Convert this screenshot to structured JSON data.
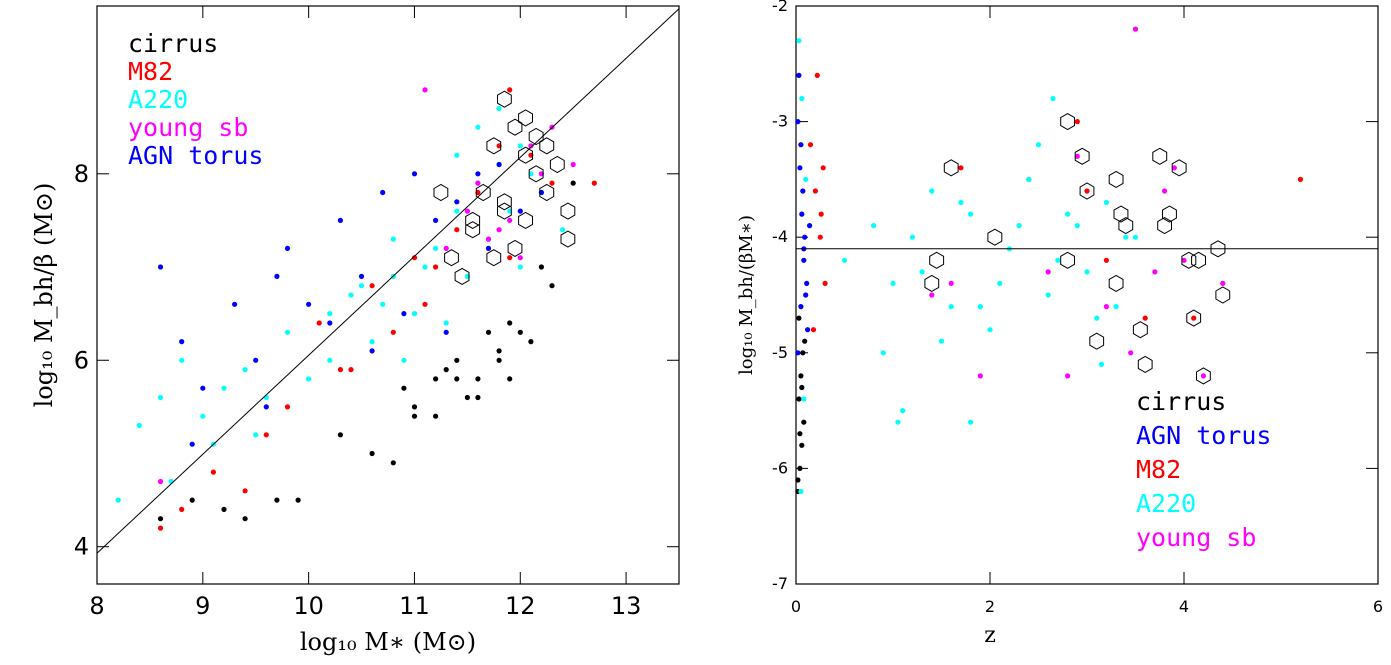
{
  "chart_data": [
    {
      "type": "scatter",
      "title": "",
      "xlabel": "log₁₀ M∗ (M⊙)",
      "ylabel": "log₁₀ M_bh/β (M⊙)",
      "xlim": [
        8,
        13.5
      ],
      "ylim": [
        3.6,
        9.8
      ],
      "xticks": [
        "8",
        "9",
        "10",
        "11",
        "12",
        "13"
      ],
      "yticks": [
        "4",
        "6",
        "8"
      ],
      "legend_position": "top-left",
      "grid": false,
      "fit_line": {
        "x": [
          8,
          13.5
        ],
        "y": [
          3.93,
          9.77
        ]
      },
      "series": [
        {
          "name": "cirrus",
          "color": "#000000",
          "x": [
            8.6,
            8.9,
            9.2,
            9.4,
            9.7,
            9.9,
            10.3,
            10.6,
            10.8,
            11.0,
            11.2,
            11.4,
            11.6,
            11.8,
            11.9,
            12.1,
            12.3,
            12.5,
            11.5,
            11.7,
            11.3,
            11.0,
            10.9,
            11.6,
            11.8,
            12.0,
            11.4,
            11.2,
            11.9,
            12.2
          ],
          "y": [
            4.3,
            4.5,
            4.4,
            4.3,
            4.5,
            4.5,
            5.2,
            5.0,
            4.9,
            5.4,
            5.4,
            5.8,
            5.6,
            6.0,
            5.8,
            6.2,
            6.8,
            7.9,
            5.6,
            6.3,
            5.9,
            5.5,
            5.7,
            5.8,
            6.1,
            6.3,
            6.0,
            5.8,
            6.4,
            7.0
          ]
        },
        {
          "name": "M82",
          "color": "#ff0000",
          "x": [
            8.6,
            8.8,
            9.1,
            9.4,
            9.6,
            9.8,
            10.1,
            10.3,
            10.6,
            10.8,
            11.0,
            11.2,
            11.4,
            11.6,
            11.8,
            11.9,
            12.1,
            12.3,
            12.7,
            11.1,
            11.9,
            10.4
          ],
          "y": [
            4.2,
            4.4,
            4.8,
            4.6,
            5.2,
            5.5,
            6.4,
            5.9,
            6.8,
            6.3,
            7.1,
            7.0,
            7.4,
            7.8,
            8.3,
            8.9,
            8.2,
            7.9,
            7.9,
            6.6,
            7.1,
            5.9
          ]
        },
        {
          "name": "A220",
          "color": "#00ffff",
          "x": [
            8.2,
            8.4,
            8.6,
            8.8,
            9.0,
            9.2,
            9.4,
            9.6,
            9.8,
            10.0,
            10.2,
            10.4,
            10.6,
            10.8,
            11.0,
            11.2,
            11.4,
            11.6,
            11.8,
            12.0,
            12.2,
            12.4,
            11.5,
            11.7,
            11.3,
            10.9,
            10.7,
            10.5,
            11.1,
            11.9,
            12.1,
            11.6,
            11.4,
            10.8,
            10.2,
            9.5,
            9.1,
            8.7,
            11.8,
            12.0
          ],
          "y": [
            4.5,
            5.3,
            5.6,
            6.0,
            5.4,
            5.7,
            5.9,
            5.6,
            6.3,
            5.8,
            6.5,
            6.7,
            6.2,
            6.9,
            6.5,
            7.2,
            7.6,
            7.9,
            8.1,
            8.3,
            7.8,
            7.4,
            6.9,
            7.3,
            6.4,
            6.0,
            6.6,
            6.8,
            7.0,
            7.6,
            8.0,
            8.5,
            8.2,
            7.3,
            6.0,
            5.2,
            5.1,
            4.7,
            8.7,
            7.0
          ]
        },
        {
          "name": "young sb",
          "color": "#ff00ff",
          "x": [
            8.6,
            11.1,
            11.3,
            11.5,
            11.7,
            11.9,
            12.1,
            12.3,
            12.5,
            11.6,
            11.8,
            12.0,
            12.2
          ],
          "y": [
            4.7,
            8.9,
            7.2,
            7.6,
            7.3,
            7.5,
            8.3,
            8.5,
            8.1,
            7.9,
            7.4,
            7.1,
            8.0
          ]
        },
        {
          "name": "AGN torus",
          "color": "#0000ff",
          "x": [
            8.6,
            8.8,
            9.0,
            9.3,
            9.5,
            9.8,
            10.0,
            10.2,
            10.5,
            10.7,
            11.0,
            11.2,
            11.4,
            11.6,
            11.8,
            12.0,
            12.2,
            9.7,
            10.3,
            10.9,
            11.3,
            11.7,
            8.9,
            9.6,
            10.6
          ],
          "y": [
            7.0,
            6.2,
            5.7,
            6.6,
            6.0,
            7.2,
            6.6,
            6.4,
            6.9,
            7.8,
            8.0,
            7.5,
            7.7,
            8.0,
            8.1,
            7.6,
            7.8,
            6.9,
            7.5,
            6.5,
            6.3,
            7.2,
            5.1,
            5.5,
            6.1
          ]
        }
      ],
      "highlighted_hexagons": {
        "x": [
          11.75,
          11.85,
          11.95,
          12.05,
          12.15,
          12.25,
          12.35,
          12.45,
          11.55,
          11.65,
          11.35,
          11.45,
          11.85,
          12.05,
          12.25,
          11.75,
          11.95,
          12.15,
          12.45,
          11.25,
          11.55,
          11.85,
          12.05
        ],
        "y": [
          8.3,
          8.8,
          8.5,
          8.6,
          8.4,
          8.3,
          8.1,
          7.6,
          7.4,
          7.8,
          7.1,
          6.9,
          7.7,
          7.5,
          7.8,
          7.1,
          7.2,
          8.0,
          7.3,
          7.8,
          7.5,
          7.6,
          8.2
        ]
      }
    },
    {
      "type": "scatter",
      "title": "",
      "xlabel": "z",
      "ylabel": "log₁₀ M_bh/(βM∗)",
      "xlim": [
        0,
        6
      ],
      "ylim": [
        -7,
        -2
      ],
      "xticks": [
        "0",
        "2",
        "4",
        "6"
      ],
      "yticks": [
        "-7",
        "-6",
        "-5",
        "-4",
        "-3",
        "-2"
      ],
      "legend_position": "bottom-right",
      "grid": false,
      "reference_line": {
        "y": -4.1
      },
      "series": [
        {
          "name": "cirrus",
          "color": "#000000",
          "x": [
            0.02,
            0.04,
            0.06,
            0.08,
            0.03,
            0.05,
            0.07,
            0.02,
            0.04,
            0.06,
            0.09,
            0.03
          ],
          "y": [
            -6.2,
            -6.0,
            -5.8,
            -5.6,
            -5.4,
            -5.2,
            -5.0,
            -6.1,
            -5.7,
            -5.3,
            -4.9,
            -4.7
          ]
        },
        {
          "name": "AGN torus",
          "color": "#0000ff",
          "x": [
            0.02,
            0.04,
            0.06,
            0.08,
            0.1,
            0.12,
            0.03,
            0.05,
            0.07,
            0.09,
            0.11,
            0.14,
            0.02,
            0.05,
            0.08
          ],
          "y": [
            -3.0,
            -3.4,
            -3.8,
            -4.2,
            -4.5,
            -4.8,
            -2.6,
            -3.2,
            -3.6,
            -4.0,
            -4.4,
            -3.9,
            -5.0,
            -4.6,
            -4.1
          ]
        },
        {
          "name": "M82",
          "color": "#ff0000",
          "x": [
            0.15,
            0.2,
            0.25,
            0.3,
            0.18,
            0.22,
            0.28,
            1.7,
            2.4,
            3.0,
            3.2,
            3.6,
            4.1,
            5.2,
            0.26,
            2.9
          ],
          "y": [
            -3.2,
            -3.6,
            -4.0,
            -4.4,
            -4.8,
            -2.6,
            -3.4,
            -3.4,
            -3.5,
            -3.6,
            -4.2,
            -4.7,
            -4.7,
            -3.5,
            -3.8,
            -3.0
          ]
        },
        {
          "name": "A220",
          "color": "#00ffff",
          "x": [
            0.03,
            0.06,
            0.1,
            0.5,
            0.8,
            1.0,
            1.2,
            1.4,
            1.6,
            1.8,
            2.0,
            2.2,
            2.4,
            2.6,
            2.8,
            3.0,
            3.2,
            3.4,
            1.1,
            1.5,
            1.9,
            2.3,
            2.7,
            3.1,
            3.5,
            0.9,
            1.3,
            1.7,
            2.1,
            2.5,
            2.9,
            3.3,
            0.05,
            0.08,
            1.05,
            1.8,
            2.65,
            3.15
          ],
          "y": [
            -2.3,
            -2.8,
            -3.5,
            -4.2,
            -3.9,
            -4.4,
            -4.0,
            -3.6,
            -4.6,
            -3.8,
            -4.8,
            -4.1,
            -3.5,
            -4.5,
            -3.8,
            -4.3,
            -3.7,
            -4.0,
            -5.5,
            -4.9,
            -4.6,
            -3.9,
            -4.2,
            -4.7,
            -4.0,
            -5.0,
            -4.3,
            -3.7,
            -4.4,
            -3.2,
            -3.9,
            -4.6,
            -6.2,
            -5.4,
            -5.6,
            -5.6,
            -2.8,
            -5.1
          ]
        },
        {
          "name": "young sb",
          "color": "#ff00ff",
          "x": [
            1.4,
            1.9,
            2.6,
            2.9,
            3.2,
            3.5,
            3.7,
            3.8,
            4.0,
            4.2,
            4.4,
            3.45,
            2.8,
            3.9,
            1.6
          ],
          "y": [
            -4.5,
            -5.2,
            -4.3,
            -3.3,
            -4.6,
            -2.2,
            -4.3,
            -3.6,
            -4.2,
            -5.2,
            -4.4,
            -5.0,
            -5.2,
            -3.4,
            -4.4
          ]
        }
      ],
      "highlighted_hexagons": {
        "x": [
          1.45,
          1.6,
          2.05,
          2.8,
          2.95,
          3.0,
          3.1,
          3.3,
          3.35,
          3.4,
          3.55,
          3.6,
          3.75,
          3.8,
          3.85,
          3.95,
          4.05,
          4.15,
          4.2,
          4.35,
          4.4,
          1.4,
          2.8,
          3.3,
          4.1
        ],
        "y": [
          -4.2,
          -3.4,
          -4.0,
          -3.0,
          -3.3,
          -3.6,
          -4.9,
          -3.5,
          -3.8,
          -3.9,
          -4.8,
          -5.1,
          -3.3,
          -3.9,
          -3.8,
          -3.4,
          -4.2,
          -4.2,
          -5.2,
          -4.1,
          -4.5,
          -4.4,
          -4.2,
          -4.4,
          -4.7
        ]
      }
    }
  ],
  "panels": [
    {
      "legend": [
        {
          "label": "cirrus",
          "color": "#000000"
        },
        {
          "label": "M82",
          "color": "#ff0000"
        },
        {
          "label": "A220",
          "color": "#00ffff"
        },
        {
          "label": "young sb",
          "color": "#ff00ff"
        },
        {
          "label": "AGN torus",
          "color": "#0000ff"
        }
      ]
    },
    {
      "legend": [
        {
          "label": "cirrus",
          "color": "#000000"
        },
        {
          "label": "AGN torus",
          "color": "#0000ff"
        },
        {
          "label": "M82",
          "color": "#ff0000"
        },
        {
          "label": "A220",
          "color": "#00ffff"
        },
        {
          "label": "young sb",
          "color": "#ff00ff"
        }
      ]
    }
  ]
}
